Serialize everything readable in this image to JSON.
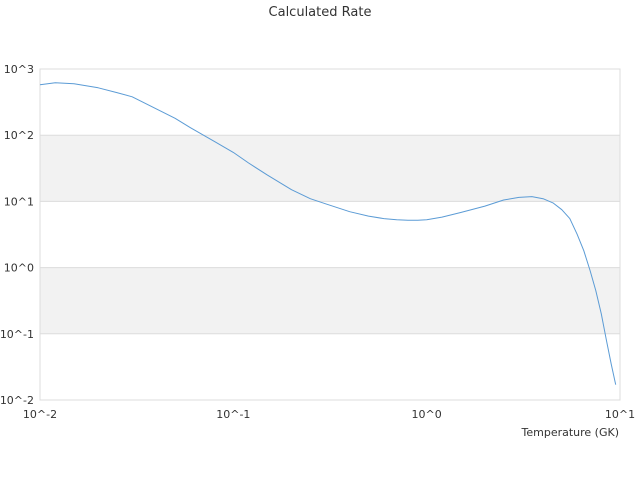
{
  "chart_data": {
    "type": "line",
    "title": "Calculated Rate",
    "xlabel": "Temperature (GK)",
    "ylabel": "",
    "x_scale": "log",
    "y_scale": "log",
    "xlim": [
      0.01,
      10
    ],
    "ylim": [
      0.01,
      1000
    ],
    "x_ticks": [
      0.01,
      0.1,
      1,
      10
    ],
    "x_tick_labels": [
      "10^-2",
      "10^-1",
      "10^0",
      "10^1"
    ],
    "y_ticks": [
      0.01,
      0.1,
      1,
      10,
      100,
      1000
    ],
    "y_tick_labels": [
      "10^-2",
      "10^-1",
      "10^0",
      "10^1",
      "10^2",
      "10^3"
    ],
    "grid": "horizontal bands",
    "band_color": "#f2f2f2",
    "grid_color": "#dcdcdc",
    "line_color": "#5b9bd5",
    "series": [
      {
        "name": "",
        "x": [
          0.01,
          0.012,
          0.015,
          0.02,
          0.025,
          0.03,
          0.04,
          0.05,
          0.06,
          0.08,
          0.1,
          0.12,
          0.15,
          0.2,
          0.25,
          0.3,
          0.4,
          0.5,
          0.6,
          0.7,
          0.8,
          0.9,
          1.0,
          1.2,
          1.5,
          2.0,
          2.5,
          3.0,
          3.5,
          4.0,
          4.5,
          5.0,
          5.5,
          6.0,
          6.5,
          7.0,
          7.5,
          8.0,
          8.5,
          9.0,
          9.5
        ],
        "y": [
          580,
          620,
          600,
          520,
          440,
          380,
          250,
          180,
          130,
          80,
          55,
          38,
          25,
          15,
          11,
          9.2,
          7.0,
          6.0,
          5.5,
          5.3,
          5.2,
          5.2,
          5.3,
          5.8,
          6.8,
          8.5,
          10.5,
          11.5,
          11.8,
          11.0,
          9.5,
          7.5,
          5.5,
          3.2,
          1.8,
          0.9,
          0.45,
          0.2,
          0.08,
          0.035,
          0.017
        ]
      }
    ]
  }
}
